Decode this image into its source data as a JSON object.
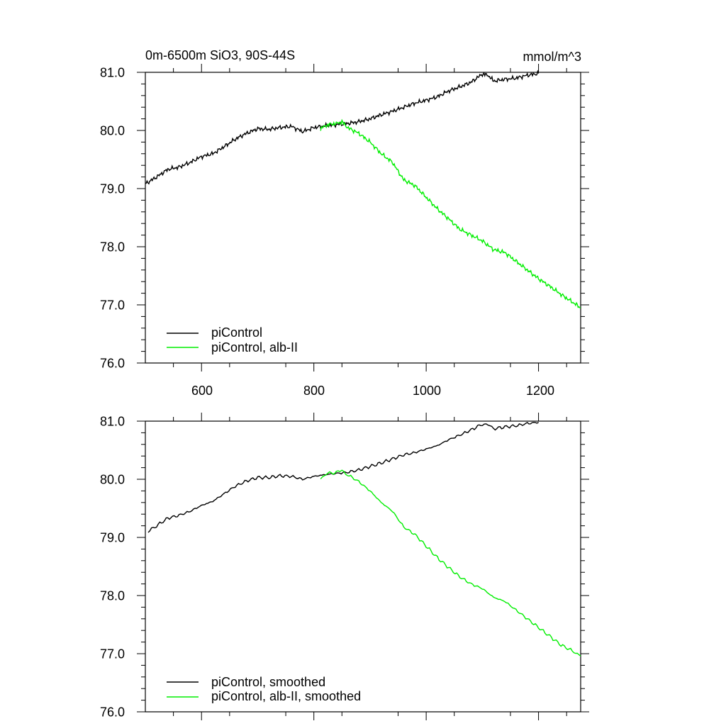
{
  "chart_data": [
    {
      "type": "line",
      "title_left": "0m-6500m SiO3, 90S-44S",
      "title_right": "mmol/m^3",
      "xlim": [
        500,
        1275
      ],
      "ylim": [
        76.0,
        81.0
      ],
      "x_ticks": [
        600,
        800,
        1000,
        1200
      ],
      "x_tick_labels": [
        "600",
        "800",
        "1000",
        "1200"
      ],
      "y_ticks": [
        76.0,
        77.0,
        78.0,
        79.0,
        80.0,
        81.0
      ],
      "y_tick_labels": [
        "76.0",
        "77.0",
        "78.0",
        "79.0",
        "80.0",
        "81.0"
      ],
      "series": [
        {
          "name": "piControl",
          "color": "#000000",
          "x": [
            500,
            520,
            540,
            560,
            580,
            600,
            620,
            640,
            660,
            680,
            700,
            720,
            740,
            760,
            780,
            800,
            820,
            840,
            860,
            880,
            900,
            920,
            940,
            960,
            980,
            1000,
            1020,
            1040,
            1060,
            1080,
            1100,
            1110,
            1120,
            1140,
            1160,
            1180,
            1200
          ],
          "y": [
            79.08,
            79.2,
            79.33,
            79.37,
            79.45,
            79.55,
            79.6,
            79.72,
            79.85,
            79.95,
            80.03,
            80.02,
            80.05,
            80.07,
            79.98,
            80.05,
            80.08,
            80.1,
            80.12,
            80.15,
            80.2,
            80.27,
            80.33,
            80.4,
            80.47,
            80.52,
            80.58,
            80.68,
            80.75,
            80.83,
            80.97,
            80.95,
            80.85,
            80.88,
            80.9,
            80.95,
            80.98
          ]
        },
        {
          "name": "piControl, alb-II",
          "color": "#00ee00",
          "x": [
            812,
            825,
            840,
            850,
            860,
            880,
            900,
            920,
            940,
            960,
            980,
            1000,
            1020,
            1040,
            1060,
            1080,
            1100,
            1120,
            1140,
            1160,
            1180,
            1200,
            1220,
            1240,
            1260,
            1275
          ],
          "y": [
            80.03,
            80.1,
            80.12,
            80.15,
            80.05,
            79.95,
            79.8,
            79.6,
            79.45,
            79.15,
            79.05,
            78.85,
            78.65,
            78.48,
            78.3,
            78.2,
            78.1,
            77.95,
            77.9,
            77.75,
            77.6,
            77.45,
            77.32,
            77.18,
            77.05,
            76.95
          ]
        }
      ],
      "legend": [
        "piControl",
        "piControl, alb-II"
      ]
    },
    {
      "type": "line",
      "xlim": [
        500,
        1275
      ],
      "ylim": [
        76.0,
        81.0
      ],
      "x_ticks": [
        600,
        800,
        1000,
        1200
      ],
      "y_ticks": [
        76.0,
        77.0,
        78.0,
        79.0,
        80.0,
        81.0
      ],
      "y_tick_labels": [
        "76.0",
        "77.0",
        "78.0",
        "79.0",
        "80.0",
        "81.0"
      ],
      "series": [
        {
          "name": "piControl, smoothed",
          "color": "#000000",
          "x": [
            505,
            520,
            540,
            560,
            580,
            600,
            620,
            640,
            660,
            680,
            700,
            720,
            740,
            760,
            780,
            800,
            820,
            840,
            860,
            880,
            900,
            920,
            940,
            960,
            980,
            1000,
            1020,
            1040,
            1060,
            1080,
            1100,
            1110,
            1120,
            1140,
            1160,
            1180,
            1200
          ],
          "y": [
            79.1,
            79.2,
            79.33,
            79.38,
            79.45,
            79.55,
            79.62,
            79.75,
            79.88,
            79.97,
            80.03,
            80.03,
            80.06,
            80.05,
            80.0,
            80.05,
            80.08,
            80.1,
            80.12,
            80.16,
            80.22,
            80.28,
            80.35,
            80.42,
            80.46,
            80.52,
            80.58,
            80.68,
            80.76,
            80.85,
            80.95,
            80.93,
            80.87,
            80.9,
            80.92,
            80.96,
            80.98
          ]
        },
        {
          "name": "piControl, alb-II, smoothed",
          "color": "#00ee00",
          "x": [
            812,
            825,
            840,
            850,
            860,
            880,
            900,
            920,
            940,
            960,
            980,
            1000,
            1020,
            1040,
            1060,
            1080,
            1100,
            1120,
            1140,
            1160,
            1180,
            1200,
            1220,
            1240,
            1260,
            1275
          ],
          "y": [
            80.03,
            80.1,
            80.12,
            80.14,
            80.08,
            79.96,
            79.8,
            79.6,
            79.45,
            79.18,
            79.05,
            78.85,
            78.65,
            78.48,
            78.32,
            78.2,
            78.12,
            77.97,
            77.9,
            77.75,
            77.6,
            77.45,
            77.3,
            77.15,
            77.05,
            76.96
          ]
        }
      ],
      "legend": [
        "piControl, smoothed",
        "piControl, alb-II, smoothed"
      ]
    }
  ]
}
